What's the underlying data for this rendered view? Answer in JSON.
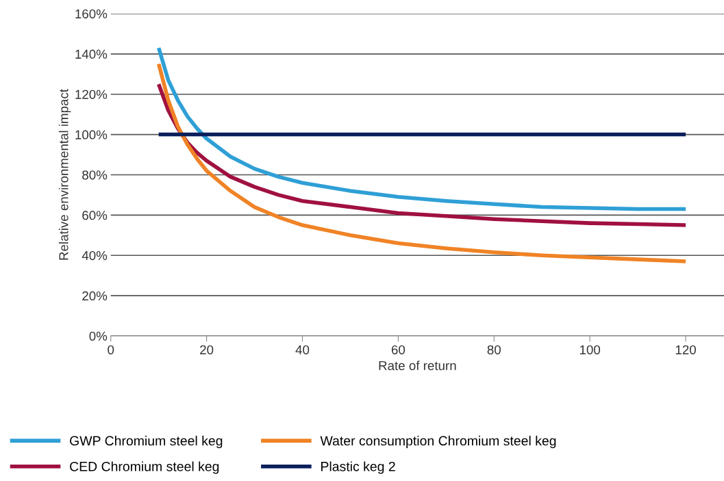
{
  "chart_data": {
    "type": "line",
    "xlabel": "Rate of return",
    "ylabel": "Relative environmental impact",
    "x": [
      10,
      12,
      14,
      16,
      18,
      20,
      25,
      30,
      35,
      40,
      50,
      60,
      70,
      80,
      90,
      100,
      110,
      120
    ],
    "series": [
      {
        "name": "GWP Chromium steel keg",
        "color": "#2f9fd6",
        "values": [
          143,
          127,
          117,
          109,
          103,
          98,
          89,
          83,
          79,
          76,
          72,
          69,
          67,
          65.5,
          64,
          63.5,
          63,
          63
        ]
      },
      {
        "name": "CED Chromium steel keg",
        "color": "#a0113f",
        "values": [
          125,
          112,
          103,
          96,
          91,
          87,
          79,
          74,
          70,
          67,
          64,
          61,
          59.5,
          58,
          57,
          56,
          55.5,
          55
        ]
      },
      {
        "name": "Water consumption Chromium steel keg",
        "color": "#f08326",
        "values": [
          135,
          117,
          104,
          95,
          88,
          82,
          72,
          64,
          59,
          55,
          50,
          46,
          43.5,
          41.5,
          40,
          39,
          38,
          37
        ]
      },
      {
        "name": "Plastic keg 2",
        "color": "#0b1f5c",
        "values": [
          100,
          100,
          100,
          100,
          100,
          100,
          100,
          100,
          100,
          100,
          100,
          100,
          100,
          100,
          100,
          100,
          100,
          100
        ]
      }
    ],
    "xlim": [
      0,
      128
    ],
    "xticks": [
      0,
      20,
      40,
      60,
      80,
      100,
      120
    ],
    "ylim": [
      0,
      160
    ],
    "yticks": [
      {
        "value": 0,
        "label": "0%"
      },
      {
        "value": 20,
        "label": "20%"
      },
      {
        "value": 40,
        "label": "40%"
      },
      {
        "value": 60,
        "label": "60%"
      },
      {
        "value": 80,
        "label": "80%"
      },
      {
        "value": 100,
        "label": "100%"
      },
      {
        "value": 120,
        "label": "120%"
      },
      {
        "value": 140,
        "label": "140%"
      },
      {
        "value": 160,
        "label": "160%"
      }
    ],
    "grid": "y",
    "legend": "bottom",
    "marker": "none",
    "line_style": "solid"
  }
}
